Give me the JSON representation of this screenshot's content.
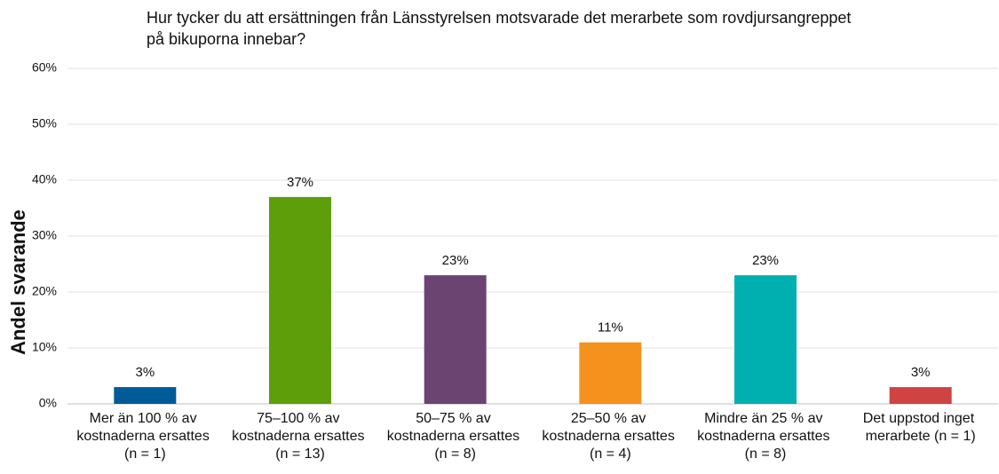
{
  "chart_data": {
    "type": "bar",
    "title": "Hur tycker du att ersättningen från Länsstyrelsen motsvarade det merarbete som rovdjursangreppet på bikuporna innebar?",
    "y_label": "Andel svarande",
    "categories": [
      "Mer än 100 % av kostnaderna ersattes (n = 1)",
      "75–100 % av kostnaderna ersattes (n = 13)",
      "50–75 % av kostnaderna ersattes (n = 8)",
      "25–50 % av kostnaderna ersattes (n = 4)",
      "Mindre än 25 % av kostnaderna ersattes (n = 8)",
      "Det uppstod inget merarbete (n = 1)"
    ],
    "values": [
      3,
      37,
      23,
      11,
      23,
      3
    ],
    "value_labels": [
      "3%",
      "37%",
      "23%",
      "11%",
      "23%",
      "3%"
    ],
    "colors": [
      "#005b96",
      "#5f9e0b",
      "#6b4472",
      "#f5921e",
      "#00b0b0",
      "#d04343"
    ],
    "ylim": [
      0,
      60
    ],
    "yticks": [
      {
        "value": 0,
        "label": "0%"
      },
      {
        "value": 10,
        "label": "10%"
      },
      {
        "value": 20,
        "label": "20%"
      },
      {
        "value": 30,
        "label": "30%"
      },
      {
        "value": 40,
        "label": "40%"
      },
      {
        "value": 50,
        "label": "50%"
      },
      {
        "value": 60,
        "label": "60%"
      }
    ],
    "grid": true
  }
}
